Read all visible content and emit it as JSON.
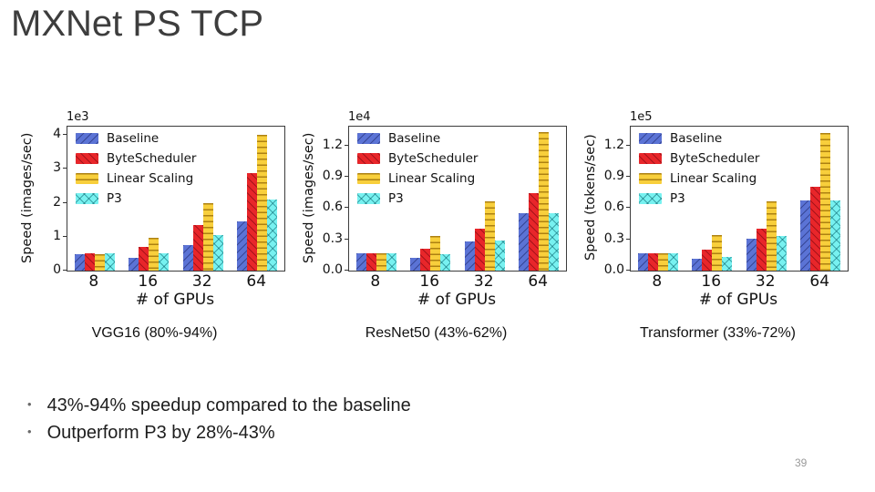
{
  "slide": {
    "title": "MXNet PS TCP",
    "page_number": "39",
    "bullets": [
      "43%-94% speedup compared to the baseline",
      "Outperform P3 by 28%-43%"
    ]
  },
  "colors": {
    "baseline": "#5b73d5",
    "bytescheduler": "#e8262a",
    "linear_scaling": "#f8cf3c",
    "p3": "#77f1f0"
  },
  "chart_data": [
    {
      "type": "bar",
      "caption": "VGG16 (80%-94%)",
      "xlabel": "# of GPUs",
      "ylabel": "Speed (images/sec)",
      "scale_label": "1e3",
      "categories": [
        "8",
        "16",
        "32",
        "64"
      ],
      "yticks": [
        0,
        1,
        2,
        3,
        4
      ],
      "ytick_labels": [
        "0",
        "1",
        "2",
        "3",
        "4"
      ],
      "ylim": [
        0,
        4.25
      ],
      "legend_position": "upper-left",
      "grid": false,
      "series": [
        {
          "name": "Baseline",
          "color": "#5b73d5",
          "hatch": "/",
          "values": [
            0.48,
            0.37,
            0.76,
            1.45
          ]
        },
        {
          "name": "ByteScheduler",
          "color": "#e8262a",
          "hatch": "\\",
          "values": [
            0.5,
            0.7,
            1.34,
            2.87
          ]
        },
        {
          "name": "Linear Scaling",
          "color": "#f8cf3c",
          "hatch": "-",
          "values": [
            0.49,
            0.97,
            2.0,
            4.0
          ]
        },
        {
          "name": "P3",
          "color": "#77f1f0",
          "hatch": "x",
          "values": [
            0.5,
            0.5,
            1.05,
            2.11
          ]
        }
      ]
    },
    {
      "type": "bar",
      "caption": "ResNet50 (43%-62%)",
      "xlabel": "# of GPUs",
      "ylabel": "Speed (images/sec)",
      "scale_label": "1e4",
      "categories": [
        "8",
        "16",
        "32",
        "64"
      ],
      "yticks": [
        0.0,
        0.3,
        0.6,
        0.9,
        1.2
      ],
      "ytick_labels": [
        "0.0",
        "0.3",
        "0.6",
        "0.9",
        "1.2"
      ],
      "ylim": [
        0,
        1.38
      ],
      "legend_position": "upper-left",
      "grid": false,
      "series": [
        {
          "name": "Baseline",
          "color": "#5b73d5",
          "hatch": "/",
          "values": [
            0.17,
            0.12,
            0.28,
            0.55
          ]
        },
        {
          "name": "ByteScheduler",
          "color": "#e8262a",
          "hatch": "\\",
          "values": [
            0.17,
            0.21,
            0.4,
            0.74
          ]
        },
        {
          "name": "Linear Scaling",
          "color": "#f8cf3c",
          "hatch": "-",
          "values": [
            0.17,
            0.33,
            0.66,
            1.33
          ]
        },
        {
          "name": "P3",
          "color": "#77f1f0",
          "hatch": "x",
          "values": [
            0.17,
            0.16,
            0.29,
            0.55
          ]
        }
      ]
    },
    {
      "type": "bar",
      "caption": "Transformer (33%-72%)",
      "xlabel": "# of GPUs",
      "ylabel": "Speed (tokens/sec)",
      "scale_label": "1e5",
      "categories": [
        "8",
        "16",
        "32",
        "64"
      ],
      "yticks": [
        0.0,
        0.3,
        0.6,
        0.9,
        1.2
      ],
      "ytick_labels": [
        "0.0",
        "0.3",
        "0.6",
        "0.9",
        "1.2"
      ],
      "ylim": [
        0,
        1.38
      ],
      "legend_position": "upper-left",
      "grid": false,
      "series": [
        {
          "name": "Baseline",
          "color": "#5b73d5",
          "hatch": "/",
          "values": [
            0.17,
            0.11,
            0.31,
            0.67
          ]
        },
        {
          "name": "ByteScheduler",
          "color": "#e8262a",
          "hatch": "\\",
          "values": [
            0.17,
            0.2,
            0.4,
            0.8
          ]
        },
        {
          "name": "Linear Scaling",
          "color": "#f8cf3c",
          "hatch": "-",
          "values": [
            0.17,
            0.34,
            0.66,
            1.32
          ]
        },
        {
          "name": "P3",
          "color": "#77f1f0",
          "hatch": "x",
          "values": [
            0.17,
            0.13,
            0.33,
            0.67
          ]
        }
      ]
    }
  ]
}
